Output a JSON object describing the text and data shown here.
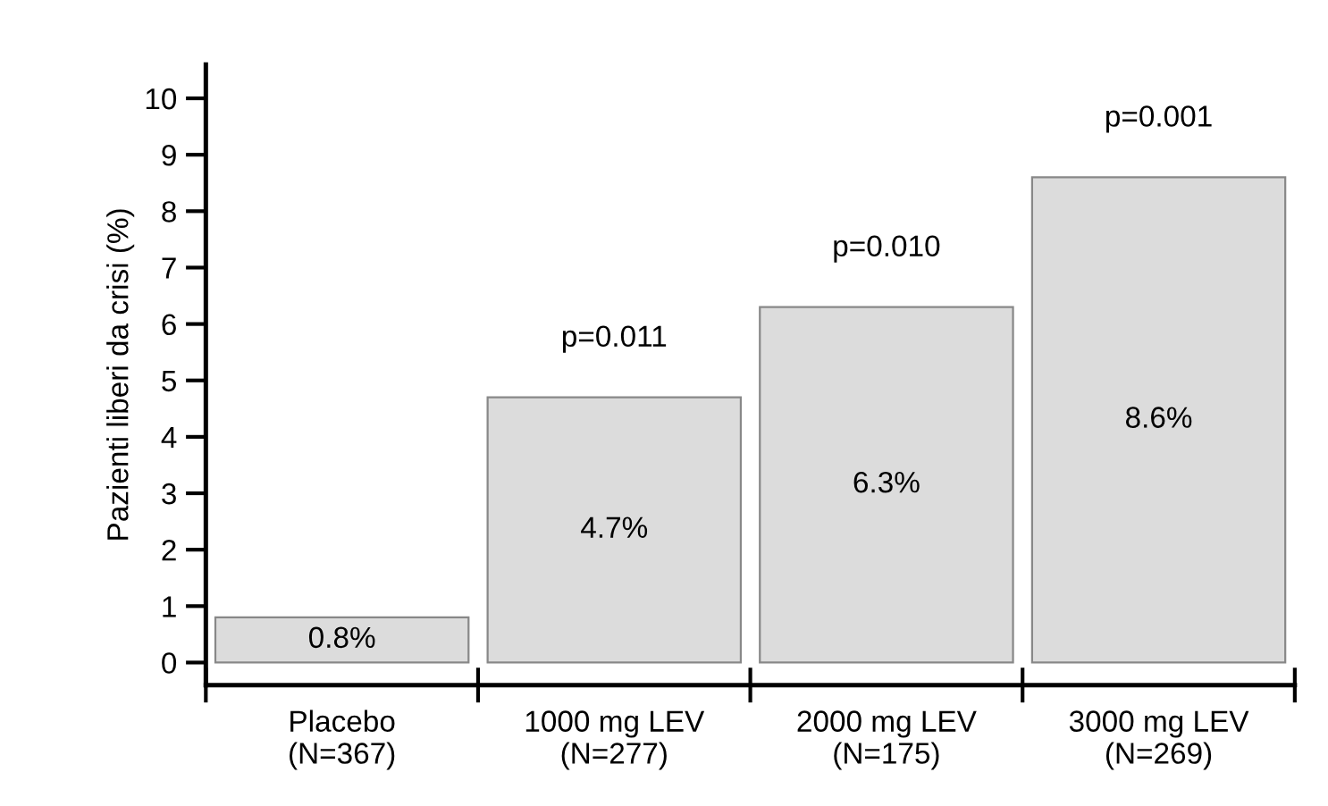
{
  "chart_data": {
    "type": "bar",
    "ylabel": "Pazienti liberi da crisi (%)",
    "categories": [
      "Placebo\n(N=367)",
      "1000 mg LEV\n(N=277)",
      "2000 mg LEV\n(N=175)",
      "3000 mg LEV\n(N=269)"
    ],
    "values": [
      0.8,
      4.7,
      6.3,
      8.6
    ],
    "value_labels": [
      "0.8%",
      "4.7%",
      "6.3%",
      "8.6%"
    ],
    "color": "#dcdcdc",
    "ylim": [
      -0.4,
      10.6
    ],
    "yticks": [
      0,
      1,
      2,
      3,
      4,
      5,
      6,
      7,
      8,
      9,
      10
    ],
    "annotations": [
      {
        "text": "p=0.011",
        "x": "1000 mg LEV\n(N=277)",
        "y": 4.7
      },
      {
        "text": "p=0.010",
        "x": "2000 mg LEV\n(N=175)",
        "y": 6.3
      },
      {
        "text": "p=0.001",
        "x": "3000 mg LEV\n(N=269)",
        "y": 8.6
      }
    ],
    "grid": false,
    "legend": false
  }
}
